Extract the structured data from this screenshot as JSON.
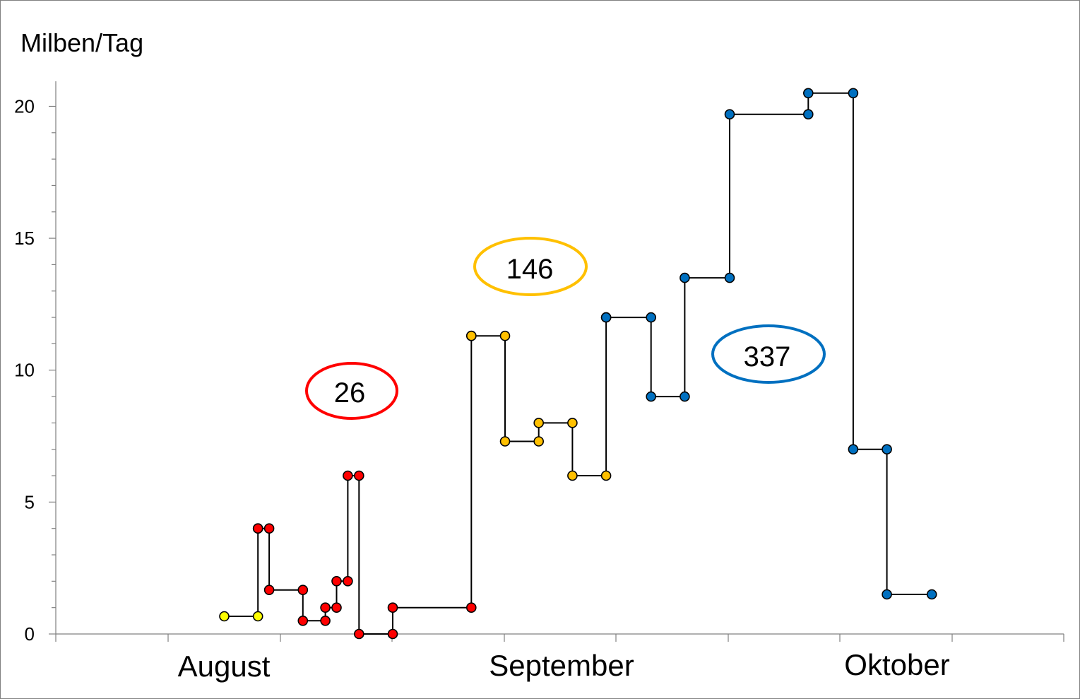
{
  "chart_data": {
    "type": "line",
    "ylabel": "Milben/Tag",
    "ylim": [
      0,
      21
    ],
    "yticks": [
      0,
      5,
      10,
      15,
      20
    ],
    "y_minor_step": 1,
    "grid": false,
    "x_axis_labels": [
      "August",
      "September",
      "Oktober"
    ],
    "series": [
      {
        "color": "#ffff00",
        "points": [
          {
            "x": "2023-08-01",
            "y": 0.67
          },
          {
            "x": "2023-08-04",
            "y": 0.67
          },
          {
            "x": "2023-08-04",
            "y": 4.0
          }
        ]
      },
      {
        "color": "#ff0000",
        "points": [
          {
            "x": "2023-08-04",
            "y": 4.0
          },
          {
            "x": "2023-08-05",
            "y": 4.0
          },
          {
            "x": "2023-08-05",
            "y": 1.67
          },
          {
            "x": "2023-08-08",
            "y": 1.67
          },
          {
            "x": "2023-08-08",
            "y": 0.5
          },
          {
            "x": "2023-08-10",
            "y": 0.5
          },
          {
            "x": "2023-08-10",
            "y": 1.0
          },
          {
            "x": "2023-08-11",
            "y": 1.0
          },
          {
            "x": "2023-08-11",
            "y": 2.0
          },
          {
            "x": "2023-08-12",
            "y": 2.0
          },
          {
            "x": "2023-08-12",
            "y": 6.0
          },
          {
            "x": "2023-08-13",
            "y": 6.0
          },
          {
            "x": "2023-08-13",
            "y": 0.0
          },
          {
            "x": "2023-08-16",
            "y": 0.0
          },
          {
            "x": "2023-08-16",
            "y": 1.0
          },
          {
            "x": "2023-08-23",
            "y": 1.0
          },
          {
            "x": "2023-08-23",
            "y": 11.3
          }
        ]
      },
      {
        "color": "#ffc000",
        "points": [
          {
            "x": "2023-08-23",
            "y": 11.3
          },
          {
            "x": "2023-08-26",
            "y": 11.3
          },
          {
            "x": "2023-08-26",
            "y": 7.3
          },
          {
            "x": "2023-08-29",
            "y": 7.3
          },
          {
            "x": "2023-08-29",
            "y": 8.0
          },
          {
            "x": "2023-09-01",
            "y": 8.0
          },
          {
            "x": "2023-09-01",
            "y": 6.0
          },
          {
            "x": "2023-09-04",
            "y": 6.0
          },
          {
            "x": "2023-09-04",
            "y": 12.0
          }
        ]
      },
      {
        "color": "#0070c0",
        "points": [
          {
            "x": "2023-09-04",
            "y": 12.0
          },
          {
            "x": "2023-09-08",
            "y": 12.0
          },
          {
            "x": "2023-09-08",
            "y": 9.0
          },
          {
            "x": "2023-09-11",
            "y": 9.0
          },
          {
            "x": "2023-09-11",
            "y": 13.5
          },
          {
            "x": "2023-09-15",
            "y": 13.5
          },
          {
            "x": "2023-09-15",
            "y": 19.7
          },
          {
            "x": "2023-09-22",
            "y": 19.7
          },
          {
            "x": "2023-09-22",
            "y": 20.5
          },
          {
            "x": "2023-09-26",
            "y": 20.5
          },
          {
            "x": "2023-09-26",
            "y": 7.0
          },
          {
            "x": "2023-09-29",
            "y": 7.0
          },
          {
            "x": "2023-09-29",
            "y": 1.5
          },
          {
            "x": "2023-10-03",
            "y": 1.5
          }
        ]
      }
    ],
    "annotations": [
      {
        "text": "26",
        "color": "#ff0000"
      },
      {
        "text": "146",
        "color": "#ffc000"
      },
      {
        "text": "337",
        "color": "#0070c0"
      }
    ]
  }
}
